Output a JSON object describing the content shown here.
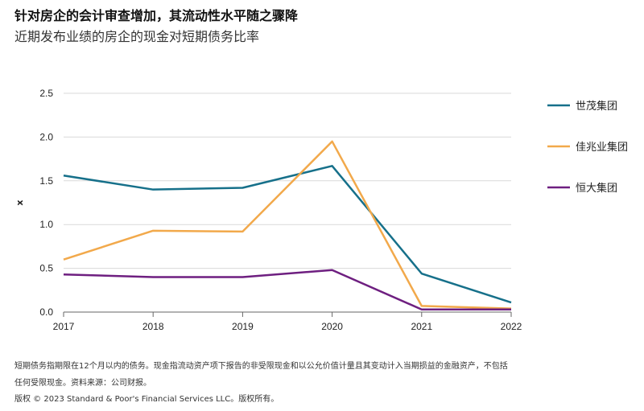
{
  "title": "针对房企的会计审查增加，其流动性水平随之骤降",
  "subtitle": "近期发布业绩的房企的现金对短期债务比率",
  "chart_data": {
    "type": "line",
    "title": "针对房企的会计审查增加，其流动性水平随之骤降",
    "subtitle": "近期发布业绩的房企的现金对短期债务比率",
    "xlabel": "",
    "ylabel": "x",
    "x": [
      "2017",
      "2018",
      "2019",
      "2020",
      "2021",
      "2022"
    ],
    "ylim": [
      0,
      2.5
    ],
    "yticks": [
      "0.0",
      "0.5",
      "1.0",
      "1.5",
      "2.0",
      "2.5"
    ],
    "grid": true,
    "legend": "right",
    "series": [
      {
        "name": "世茂集团",
        "color": "#16708a",
        "values": [
          1.56,
          1.4,
          1.42,
          1.67,
          0.44,
          0.11
        ]
      },
      {
        "name": "佳兆业集团",
        "color": "#f2a94b",
        "values": [
          0.6,
          0.93,
          0.92,
          1.95,
          0.07,
          0.04
        ]
      },
      {
        "name": "恒大集团",
        "color": "#6e1f80",
        "values": [
          0.43,
          0.4,
          0.4,
          0.48,
          0.03,
          0.03
        ]
      }
    ]
  },
  "footnote_1": "短期债务指期限在12个月以内的债务。现金指流动资产项下报告的非受限现金和以公允价值计量且其变动计入当期损益的金融资产，不包括",
  "footnote_2": "任何受限现金。资料来源：公司财报。",
  "copyright": "版权 © 2023 Standard & Poor's Financial Services LLC。版权所有。"
}
